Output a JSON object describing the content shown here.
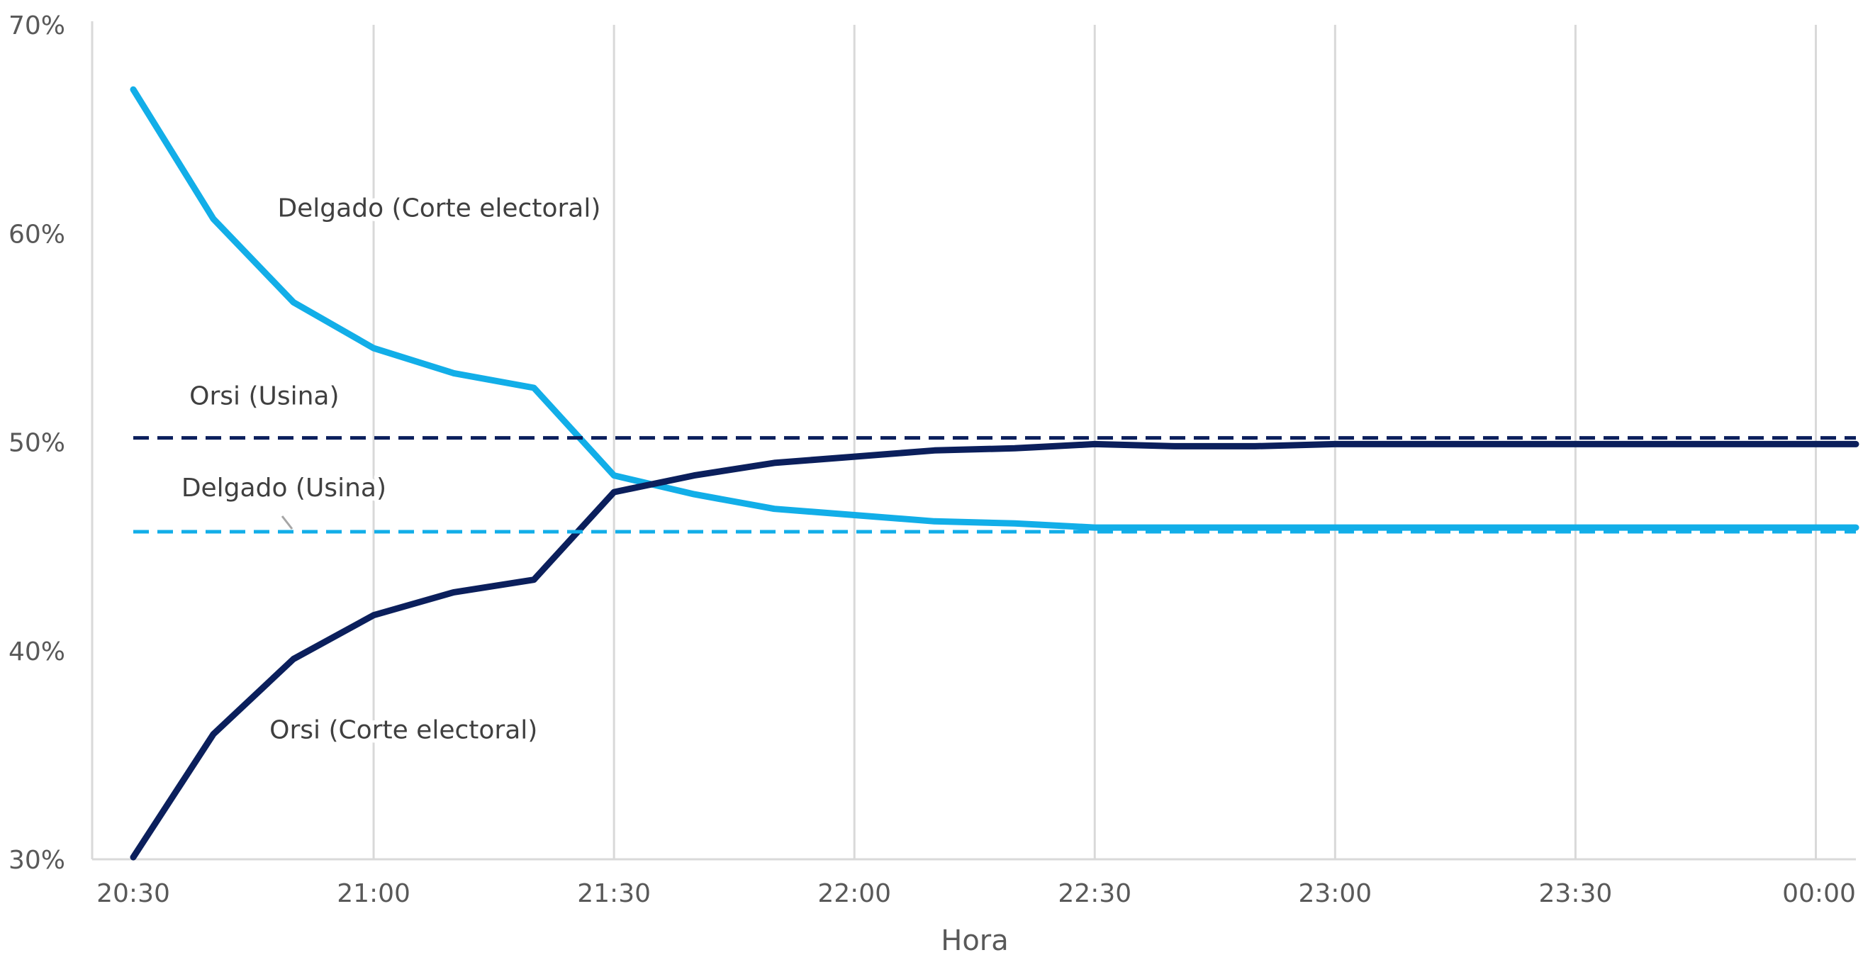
{
  "chart_data": {
    "type": "line",
    "title": "",
    "xlabel": "Hora",
    "ylabel": "",
    "x_tick_labels": [
      "20:30",
      "21:00",
      "21:30",
      "22:00",
      "22:30",
      "23:00",
      "23:30",
      "00:00"
    ],
    "y_tick_labels": [
      "30%",
      "40%",
      "50%",
      "60%",
      "70%"
    ],
    "xlim": [
      "20:30",
      "00:05"
    ],
    "ylim": [
      30,
      70
    ],
    "x_tick_minutes": [
      0,
      30,
      60,
      90,
      120,
      150,
      180,
      210
    ],
    "y_ticks": [
      30,
      40,
      50,
      60,
      70
    ],
    "grid": "vertical",
    "series": [
      {
        "name": "Delgado (Corte electoral)",
        "style": "solid",
        "color": "#12aee8",
        "x": [
          "20:30",
          "20:40",
          "20:50",
          "21:00",
          "21:10",
          "21:20",
          "21:30",
          "21:40",
          "21:50",
          "22:00",
          "22:10",
          "22:20",
          "22:30",
          "22:40",
          "22:50",
          "23:00",
          "23:10",
          "23:20",
          "23:30",
          "23:40",
          "23:50",
          "00:00",
          "00:05"
        ],
        "y": [
          66.9,
          60.7,
          56.7,
          54.5,
          53.3,
          52.6,
          48.4,
          47.5,
          46.8,
          46.5,
          46.2,
          46.1,
          45.9,
          45.9,
          45.9,
          45.9,
          45.9,
          45.9,
          45.9,
          45.9,
          45.9,
          45.9,
          45.9
        ]
      },
      {
        "name": "Orsi (Corte electoral)",
        "style": "solid",
        "color": "#0b1f5c",
        "x": [
          "20:30",
          "20:40",
          "20:50",
          "21:00",
          "21:10",
          "21:20",
          "21:30",
          "21:40",
          "21:50",
          "22:00",
          "22:10",
          "22:20",
          "22:30",
          "22:40",
          "22:50",
          "23:00",
          "23:10",
          "23:20",
          "23:30",
          "23:40",
          "23:50",
          "00:00",
          "00:05"
        ],
        "y": [
          30.1,
          36.0,
          39.6,
          41.7,
          42.8,
          43.4,
          47.6,
          48.4,
          49.0,
          49.3,
          49.6,
          49.7,
          49.9,
          49.8,
          49.8,
          49.9,
          49.9,
          49.9,
          49.9,
          49.9,
          49.9,
          49.9,
          49.9
        ]
      },
      {
        "name": "Orsi (Usina)",
        "style": "dashed",
        "color": "#0b1f5c",
        "x": [
          "20:30",
          "00:05"
        ],
        "y": [
          50.2,
          50.2
        ]
      },
      {
        "name": "Delgado (Usina)",
        "style": "dashed",
        "color": "#12aee8",
        "x": [
          "20:30",
          "00:05"
        ],
        "y": [
          45.7,
          45.7
        ]
      }
    ],
    "annotations": [
      {
        "text": "Delgado (Corte electoral)",
        "x": "20:48",
        "y": 60.8,
        "series": "Delgado (Corte electoral)"
      },
      {
        "text": "Orsi (Usina)",
        "x": "20:37",
        "y": 51.8,
        "series": "Orsi (Usina)"
      },
      {
        "text": "Delgado (Usina)",
        "x": "20:36",
        "y": 47.4,
        "series": "Delgado (Usina)"
      },
      {
        "text": "Orsi (Corte electoral)",
        "x": "20:47",
        "y": 35.8,
        "series": "Orsi (Corte electoral)"
      }
    ]
  }
}
